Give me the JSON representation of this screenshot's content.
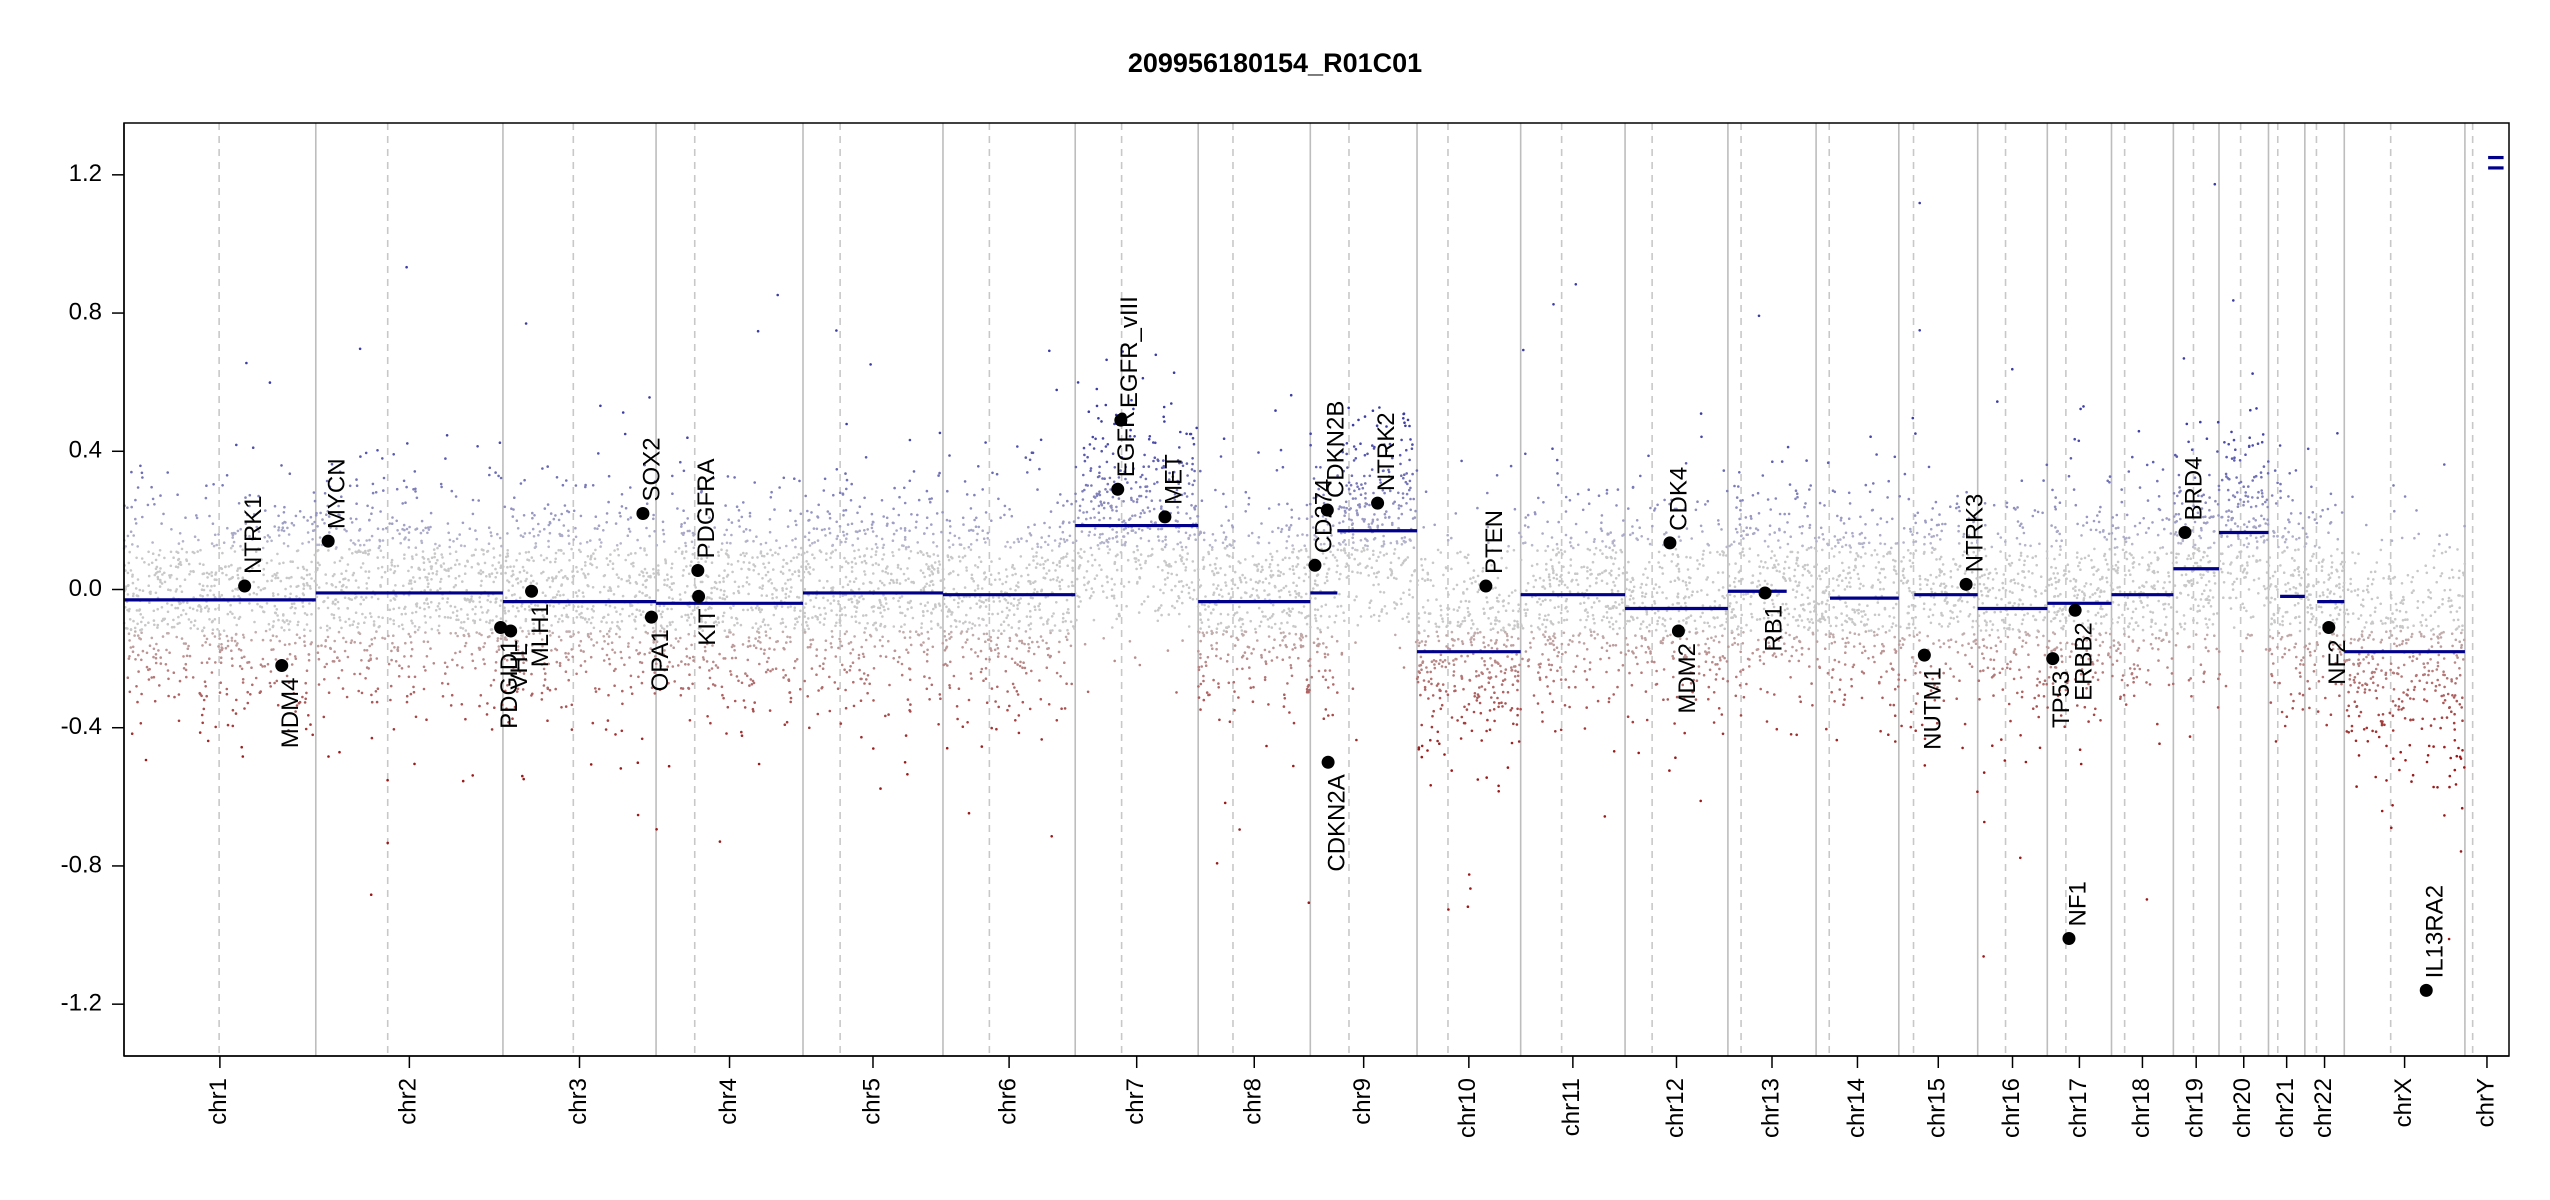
{
  "chart_data": {
    "type": "scatter",
    "title": "209956180154_R01C01",
    "xlabel": "",
    "ylabel": "",
    "ylim": [
      -1.35,
      1.35
    ],
    "yticks": [
      -1.2,
      -0.8,
      -0.4,
      0.0,
      0.4,
      0.8,
      1.2
    ],
    "ytick_labels": [
      "-1.2",
      "-0.8",
      "-0.4",
      "0.0",
      "0.4",
      "0.8",
      "1.2"
    ],
    "grid": false,
    "colors": {
      "gain": "#3a3aa0",
      "loss": "#a01818",
      "neutral": "#bbbbbb",
      "segment": "#00008b",
      "gene_point": "#000000",
      "chrom_separator": "#bdbdbd",
      "centromere": "#c8c8c8"
    },
    "chromosomes": [
      {
        "name": "chr1",
        "start": 0,
        "end": 248,
        "centromere": 123
      },
      {
        "name": "chr2",
        "start": 248,
        "end": 490,
        "centromere": 93
      },
      {
        "name": "chr3",
        "start": 490,
        "end": 688,
        "centromere": 91
      },
      {
        "name": "chr4",
        "start": 688,
        "end": 878,
        "centromere": 50
      },
      {
        "name": "chr5",
        "start": 878,
        "end": 1059,
        "centromere": 48
      },
      {
        "name": "chr6",
        "start": 1059,
        "end": 1230,
        "centromere": 60
      },
      {
        "name": "chr7",
        "start": 1230,
        "end": 1389,
        "centromere": 60
      },
      {
        "name": "chr8",
        "start": 1389,
        "end": 1534,
        "centromere": 45
      },
      {
        "name": "chr9",
        "start": 1534,
        "end": 1672,
        "centromere": 50
      },
      {
        "name": "chr10",
        "start": 1672,
        "end": 1806,
        "centromere": 40
      },
      {
        "name": "chr11",
        "start": 1806,
        "end": 1941,
        "centromere": 53
      },
      {
        "name": "chr12",
        "start": 1941,
        "end": 2074,
        "centromere": 35
      },
      {
        "name": "chr13",
        "start": 2074,
        "end": 2188,
        "centromere": 17
      },
      {
        "name": "chr14",
        "start": 2188,
        "end": 2295,
        "centromere": 17
      },
      {
        "name": "chr15",
        "start": 2295,
        "end": 2397,
        "centromere": 19
      },
      {
        "name": "chr16",
        "start": 2397,
        "end": 2487,
        "centromere": 36
      },
      {
        "name": "chr17",
        "start": 2487,
        "end": 2570,
        "centromere": 24
      },
      {
        "name": "chr18",
        "start": 2570,
        "end": 2650,
        "centromere": 17
      },
      {
        "name": "chr19",
        "start": 2650,
        "end": 2709,
        "centromere": 26
      },
      {
        "name": "chr20",
        "start": 2709,
        "end": 2773,
        "centromere": 28
      },
      {
        "name": "chr21",
        "start": 2773,
        "end": 2820,
        "centromere": 12
      },
      {
        "name": "chr22",
        "start": 2820,
        "end": 2871,
        "centromere": 15
      },
      {
        "name": "chrX",
        "start": 2871,
        "end": 3027,
        "centromere": 60
      },
      {
        "name": "chrY",
        "start": 3027,
        "end": 3084,
        "centromere": 10
      }
    ],
    "segments": [
      {
        "chr": "chr1",
        "start": 0,
        "end": 248,
        "value": -0.03
      },
      {
        "chr": "chr2",
        "start": 248,
        "end": 490,
        "value": -0.01
      },
      {
        "chr": "chr3",
        "start": 490,
        "end": 688,
        "value": -0.035
      },
      {
        "chr": "chr4",
        "start": 688,
        "end": 878,
        "value": -0.04
      },
      {
        "chr": "chr5",
        "start": 878,
        "end": 1059,
        "value": -0.01
      },
      {
        "chr": "chr6",
        "start": 1059,
        "end": 1230,
        "value": -0.015
      },
      {
        "chr": "chr7",
        "start": 1230,
        "end": 1389,
        "value": 0.185
      },
      {
        "chr": "chr8",
        "start": 1389,
        "end": 1534,
        "value": -0.035
      },
      {
        "chr": "chr9",
        "start": 1534,
        "end": 1569,
        "value": -0.01
      },
      {
        "chr": "chr9",
        "start": 1569,
        "end": 1672,
        "value": 0.17
      },
      {
        "chr": "chr10",
        "start": 1672,
        "end": 1806,
        "value": -0.18
      },
      {
        "chr": "chr11",
        "start": 1806,
        "end": 1941,
        "value": -0.015
      },
      {
        "chr": "chr12",
        "start": 1941,
        "end": 2074,
        "value": -0.055
      },
      {
        "chr": "chr13",
        "start": 2074,
        "end": 2150,
        "value": -0.005
      },
      {
        "chr": "chr14",
        "start": 2206,
        "end": 2295,
        "value": -0.025
      },
      {
        "chr": "chr15",
        "start": 2315,
        "end": 2397,
        "value": -0.015
      },
      {
        "chr": "chr16",
        "start": 2397,
        "end": 2487,
        "value": -0.055
      },
      {
        "chr": "chr17",
        "start": 2487,
        "end": 2570,
        "value": -0.04
      },
      {
        "chr": "chr18",
        "start": 2570,
        "end": 2650,
        "value": -0.015
      },
      {
        "chr": "chr19",
        "start": 2650,
        "end": 2709,
        "value": 0.06
      },
      {
        "chr": "chr20",
        "start": 2709,
        "end": 2773,
        "value": 0.165
      },
      {
        "chr": "chr21",
        "start": 2788,
        "end": 2820,
        "value": -0.02
      },
      {
        "chr": "chr22",
        "start": 2836,
        "end": 2871,
        "value": -0.035
      },
      {
        "chr": "chrX",
        "start": 2871,
        "end": 3027,
        "value": -0.18
      },
      {
        "chr": "chrY",
        "start": 3057,
        "end": 3077,
        "value": 1.22
      },
      {
        "chr": "chrY",
        "start": 3057,
        "end": 3077,
        "value": 1.25
      }
    ],
    "genes": [
      {
        "name": "NTRK1",
        "x": 156,
        "value": 0.01,
        "label_dir": "up"
      },
      {
        "name": "MDM4",
        "x": 204,
        "value": -0.22,
        "label_dir": "down"
      },
      {
        "name": "MYCN",
        "x": 264,
        "value": 0.14,
        "label_dir": "up"
      },
      {
        "name": "PDGID1",
        "x": 487,
        "value": -0.11,
        "label_dir": "down"
      },
      {
        "name": "VHL",
        "x": 500,
        "value": -0.12,
        "label_dir": "down"
      },
      {
        "name": "MLH1",
        "x": 527,
        "value": -0.005,
        "label_dir": "down"
      },
      {
        "name": "SOX2",
        "x": 671,
        "value": 0.22,
        "label_dir": "up"
      },
      {
        "name": "OPA1",
        "x": 682,
        "value": -0.08,
        "label_dir": "down"
      },
      {
        "name": "PDGFRA",
        "x": 742,
        "value": 0.055,
        "label_dir": "up"
      },
      {
        "name": "KIT",
        "x": 743,
        "value": -0.02,
        "label_dir": "down"
      },
      {
        "name": "EGFR",
        "x": 1285,
        "value": 0.29,
        "label_dir": "up"
      },
      {
        "name": "EGFR_vIII",
        "x": 1289,
        "value": 0.49,
        "label_dir": "up"
      },
      {
        "name": "MET",
        "x": 1346,
        "value": 0.21,
        "label_dir": "up"
      },
      {
        "name": "CD274",
        "x": 1540,
        "value": 0.07,
        "label_dir": "up"
      },
      {
        "name": "CDKN2B",
        "x": 1556,
        "value": 0.23,
        "label_dir": "up"
      },
      {
        "name": "CDKN2A",
        "x": 1557,
        "value": -0.5,
        "label_dir": "down"
      },
      {
        "name": "NTRK2",
        "x": 1621,
        "value": 0.25,
        "label_dir": "up"
      },
      {
        "name": "PTEN",
        "x": 1761,
        "value": 0.01,
        "label_dir": "up"
      },
      {
        "name": "CDK4",
        "x": 1999,
        "value": 0.135,
        "label_dir": "up"
      },
      {
        "name": "MDM2",
        "x": 2010,
        "value": -0.12,
        "label_dir": "down"
      },
      {
        "name": "RB1",
        "x": 2122,
        "value": -0.01,
        "label_dir": "down"
      },
      {
        "name": "NUTM1",
        "x": 2328,
        "value": -0.19,
        "label_dir": "down"
      },
      {
        "name": "NTRK3",
        "x": 2382,
        "value": 0.015,
        "label_dir": "up"
      },
      {
        "name": "TP53",
        "x": 2494,
        "value": -0.2,
        "label_dir": "down"
      },
      {
        "name": "ERBB2",
        "x": 2523,
        "value": -0.06,
        "label_dir": "down"
      },
      {
        "name": "NF1",
        "x": 2515,
        "value": -1.01,
        "label_dir": "up"
      },
      {
        "name": "BRD4",
        "x": 2665,
        "value": 0.165,
        "label_dir": "up"
      },
      {
        "name": "NF2",
        "x": 2851,
        "value": -0.11,
        "label_dir": "down"
      },
      {
        "name": "IL13RA2",
        "x": 2977,
        "value": -1.16,
        "label_dir": "up"
      }
    ]
  }
}
